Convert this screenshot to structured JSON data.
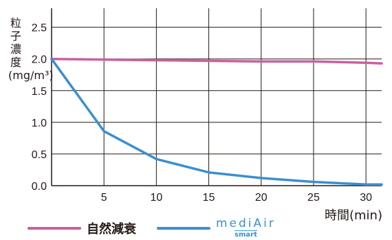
{
  "chart_data": {
    "type": "line",
    "title": "",
    "ylabel": "粒子濃度(mg/m³)",
    "xlabel": "時間(min)",
    "xlim": [
      0,
      31.5
    ],
    "ylim": [
      0,
      2.8
    ],
    "x_ticks": [
      5,
      10,
      15,
      20,
      25,
      30
    ],
    "x_tick_labels": [
      "5",
      "10",
      "15",
      "20",
      "25",
      "30"
    ],
    "y_ticks": [
      0,
      0.5,
      1.0,
      1.5,
      2.0,
      2.5
    ],
    "y_tick_labels": [
      "0.0",
      "0.5",
      "1.0",
      "1.5",
      "2.0",
      "2.5"
    ],
    "grid": true,
    "legend_position": "bottom",
    "series": [
      {
        "name": "自然減衰",
        "color": "#c8609f",
        "x": [
          0,
          5,
          10,
          15,
          20,
          25,
          30,
          31.5
        ],
        "y": [
          2.0,
          1.99,
          1.98,
          1.97,
          1.96,
          1.96,
          1.94,
          1.93
        ]
      },
      {
        "name": "mediAir smart",
        "color": "#3a8fcf",
        "x": [
          0,
          5,
          10,
          15,
          20,
          25,
          30,
          31.5
        ],
        "y": [
          2.0,
          0.86,
          0.42,
          0.21,
          0.12,
          0.06,
          0.02,
          0.02
        ]
      }
    ]
  },
  "legend": {
    "natural_label": "自然減衰",
    "brand_main": "mediAir",
    "brand_sub": "smart",
    "brand_icon": "medi-air-logo"
  }
}
